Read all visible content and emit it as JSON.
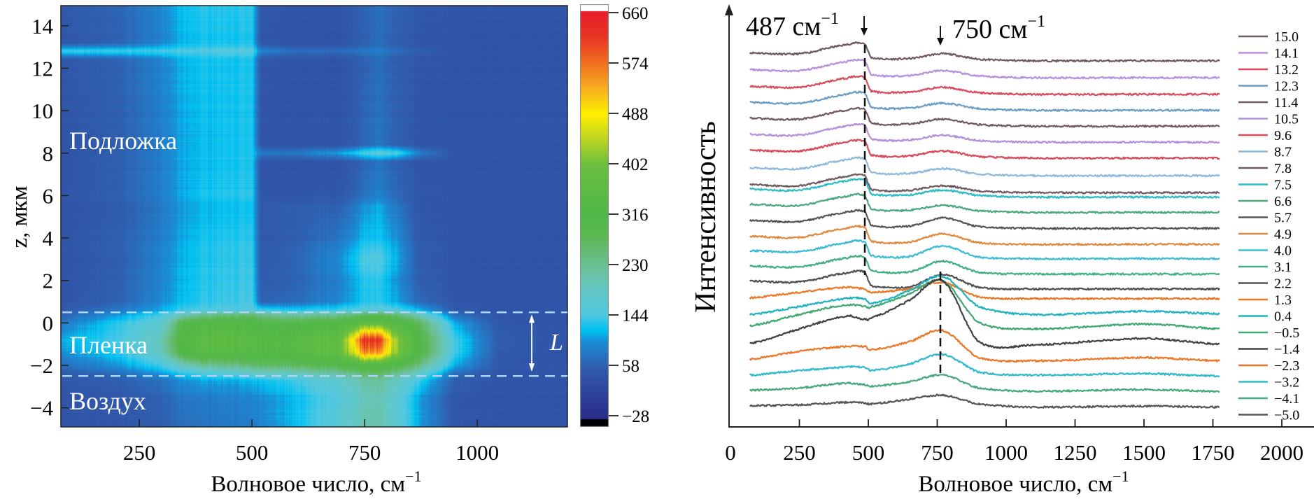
{
  "panel_left": {
    "xlabel": "Волновое число, см",
    "xlabel_sup": "−1",
    "ylabel": "z, мкм",
    "region_labels": {
      "substrate": "Подложка",
      "film": "Пленка",
      "air": "Воздух"
    },
    "thickness_label": "L",
    "colors": {
      "dashed_line": "#a8d4f2",
      "region_text": "#ffffff"
    }
  },
  "panel_right": {
    "xlabel": "Волновое число, см",
    "xlabel_sup": "−1",
    "ylabel": "Интенсивность",
    "annotation_487": {
      "text": "487 см",
      "sup": "−1"
    },
    "annotation_750": {
      "text": "750 см",
      "sup": "−1"
    }
  },
  "chart_data": [
    {
      "type": "heatmap",
      "xlabel": "Волновое число, см−1",
      "ylabel": "z, мкм",
      "xlim": [
        76,
        1200
      ],
      "ylim": [
        -4.9,
        14.95
      ],
      "xticks": [
        "250",
        "500",
        "750",
        "1000"
      ],
      "xtick_values": [
        250,
        500,
        750,
        1000
      ],
      "yticks": [
        "14",
        "12",
        "10",
        "8",
        "6",
        "4",
        "2",
        "0",
        "−2",
        "−4"
      ],
      "ytick_values": [
        14,
        12,
        10,
        8,
        6,
        4,
        2,
        0,
        -2,
        -4
      ],
      "dashed_lines_z": [
        0.5,
        -2.5
      ],
      "thickness_arrow_z": [
        0.4,
        -2.3
      ],
      "colorbar": {
        "range": [
          -28,
          660
        ],
        "ticks": [
          "660",
          "574",
          "488",
          "402",
          "316",
          "230",
          "144",
          "58",
          "−28"
        ],
        "tick_values": [
          660,
          574,
          488,
          402,
          316,
          230,
          144,
          58,
          -28
        ],
        "colormap": [
          [
            -28,
            "#2b2f8c"
          ],
          [
            20,
            "#2f48a0"
          ],
          [
            58,
            "#3060b0"
          ],
          [
            100,
            "#1a8fd8"
          ],
          [
            118,
            "#00c2f2"
          ],
          [
            144,
            "#50c8e2"
          ],
          [
            190,
            "#66c8c4"
          ],
          [
            230,
            "#6cc094"
          ],
          [
            280,
            "#5cb852"
          ],
          [
            316,
            "#50b848"
          ],
          [
            402,
            "#6cc040"
          ],
          [
            450,
            "#c8d820"
          ],
          [
            488,
            "#fff000"
          ],
          [
            530,
            "#f8b020"
          ],
          [
            574,
            "#f07020"
          ],
          [
            620,
            "#e83424"
          ],
          [
            660,
            "#e8202a"
          ]
        ],
        "over_color": "#ffffff",
        "under_color": "#000000"
      },
      "grid": {
        "x": [
          80,
          200,
          300,
          350,
          400,
          450,
          500,
          520,
          600,
          700,
          750,
          780,
          820,
          870,
          950,
          1050,
          1200
        ],
        "z": [
          15,
          13.2,
          12.8,
          12.4,
          9,
          8.4,
          8,
          7.6,
          6,
          5.5,
          4,
          3,
          2,
          1,
          0.6,
          0.4,
          0,
          -0.8,
          -1.4,
          -2,
          -2.4,
          -2.7,
          -3.5,
          -5
        ],
        "values": [
          [
            45,
            60,
            90,
            120,
            130,
            130,
            130,
            45,
            40,
            40,
            60,
            70,
            60,
            45,
            40,
            40,
            40
          ],
          [
            45,
            60,
            90,
            115,
            125,
            125,
            125,
            45,
            40,
            40,
            60,
            70,
            55,
            45,
            40,
            40,
            40
          ],
          [
            140,
            140,
            140,
            145,
            150,
            155,
            150,
            90,
            70,
            70,
            80,
            85,
            70,
            55,
            40,
            40,
            40
          ],
          [
            45,
            60,
            90,
            115,
            125,
            125,
            125,
            45,
            40,
            40,
            60,
            70,
            55,
            45,
            40,
            40,
            40
          ],
          [
            40,
            55,
            85,
            110,
            120,
            125,
            125,
            42,
            40,
            40,
            65,
            75,
            60,
            42,
            40,
            40,
            40
          ],
          [
            40,
            55,
            85,
            110,
            120,
            125,
            125,
            42,
            40,
            40,
            65,
            75,
            60,
            42,
            40,
            40,
            40
          ],
          [
            40,
            55,
            85,
            110,
            120,
            125,
            125,
            80,
            80,
            110,
            150,
            160,
            150,
            90,
            40,
            40,
            40
          ],
          [
            40,
            55,
            85,
            110,
            120,
            125,
            125,
            42,
            40,
            40,
            65,
            75,
            60,
            42,
            40,
            40,
            40
          ],
          [
            40,
            55,
            85,
            110,
            125,
            130,
            130,
            42,
            40,
            45,
            75,
            85,
            65,
            45,
            40,
            40,
            40
          ],
          [
            40,
            50,
            80,
            105,
            115,
            120,
            120,
            50,
            55,
            60,
            100,
            110,
            80,
            45,
            40,
            40,
            40
          ],
          [
            40,
            55,
            85,
            110,
            125,
            130,
            130,
            45,
            55,
            80,
            120,
            120,
            100,
            50,
            40,
            40,
            40
          ],
          [
            40,
            55,
            90,
            115,
            130,
            135,
            135,
            48,
            65,
            100,
            150,
            150,
            115,
            55,
            40,
            40,
            40
          ],
          [
            40,
            55,
            90,
            115,
            130,
            135,
            135,
            50,
            60,
            90,
            130,
            130,
            100,
            55,
            40,
            40,
            40
          ],
          [
            42,
            60,
            95,
            120,
            135,
            140,
            140,
            60,
            70,
            95,
            130,
            130,
            110,
            70,
            42,
            40,
            40
          ],
          [
            50,
            80,
            110,
            140,
            150,
            150,
            150,
            140,
            130,
            140,
            160,
            160,
            150,
            120,
            50,
            40,
            40
          ],
          [
            60,
            100,
            140,
            200,
            230,
            250,
            250,
            230,
            210,
            230,
            270,
            270,
            250,
            200,
            70,
            42,
            40
          ],
          [
            80,
            130,
            170,
            300,
            330,
            330,
            310,
            300,
            300,
            320,
            360,
            360,
            330,
            280,
            110,
            45,
            40
          ],
          [
            110,
            140,
            200,
            330,
            360,
            360,
            340,
            340,
            340,
            380,
            640,
            620,
            420,
            320,
            140,
            50,
            40
          ],
          [
            100,
            130,
            190,
            320,
            350,
            350,
            330,
            330,
            340,
            380,
            560,
            540,
            420,
            320,
            140,
            50,
            40
          ],
          [
            70,
            100,
            140,
            200,
            230,
            240,
            250,
            260,
            270,
            300,
            330,
            320,
            300,
            250,
            110,
            45,
            40
          ],
          [
            50,
            70,
            100,
            130,
            150,
            160,
            170,
            180,
            190,
            220,
            260,
            260,
            230,
            180,
            70,
            42,
            40
          ],
          [
            45,
            55,
            75,
            100,
            110,
            110,
            115,
            120,
            140,
            180,
            220,
            220,
            190,
            140,
            55,
            40,
            40
          ],
          [
            40,
            45,
            60,
            80,
            85,
            90,
            90,
            95,
            120,
            160,
            200,
            200,
            170,
            110,
            45,
            40,
            40
          ],
          [
            40,
            45,
            55,
            70,
            75,
            80,
            80,
            90,
            120,
            170,
            210,
            210,
            170,
            110,
            45,
            40,
            40
          ]
        ]
      }
    },
    {
      "type": "line",
      "xlabel": "Волновое число, см−1",
      "ylabel": "Интенсивность",
      "xlim": [
        0,
        2000
      ],
      "ylim": [
        -3.7,
        128.5
      ],
      "xticks": [
        "0",
        "250",
        "500",
        "750",
        "1000",
        "1250",
        "1500",
        "1750",
        "2000"
      ],
      "xtick_values": [
        0,
        250,
        500,
        750,
        1000,
        1250,
        1500,
        1750,
        2000
      ],
      "legend_placement": "right",
      "annotations": [
        {
          "text": "487 см−1",
          "x": 487,
          "marker": "arrow-down"
        },
        {
          "text": "750 см−1",
          "x": 762,
          "marker": "arrow-down"
        }
      ],
      "dashed_guides": [
        {
          "x": 487,
          "series_from": "15.0",
          "series_to": "2.2"
        },
        {
          "x": 762,
          "series_from": "1.3",
          "series_to": "-4.1"
        }
      ],
      "x": [
        70,
        250,
        420,
        487,
        510,
        650,
        770,
        900,
        1100,
        1500,
        1775
      ],
      "series": [
        {
          "name": "15.0",
          "color": "#6e5a60",
          "values": [
            113.5,
            113.2,
            116.0,
            116.3,
            112.0,
            111.7,
            113.2,
            111.5,
            111.0,
            111.0,
            111.0
          ]
        },
        {
          "name": "14.1",
          "color": "#b48fdc",
          "values": [
            108.2,
            107.9,
            110.7,
            111.0,
            106.7,
            106.4,
            107.9,
            106.2,
            105.7,
            105.7,
            105.7
          ]
        },
        {
          "name": "13.2",
          "color": "#d84a5c",
          "values": [
            103.0,
            102.7,
            105.5,
            105.8,
            101.5,
            101.2,
            102.7,
            101.0,
            100.5,
            100.5,
            100.5
          ]
        },
        {
          "name": "12.3",
          "color": "#6a9cc4",
          "values": [
            98.0,
            97.7,
            100.5,
            100.8,
            96.5,
            96.2,
            97.7,
            96.0,
            95.5,
            95.5,
            95.5
          ]
        },
        {
          "name": "11.4",
          "color": "#6e5a60",
          "values": [
            93.0,
            92.7,
            95.5,
            95.8,
            91.5,
            91.2,
            92.7,
            91.0,
            90.5,
            90.5,
            90.5
          ]
        },
        {
          "name": "10.5",
          "color": "#b48fdc",
          "values": [
            88.0,
            87.7,
            90.5,
            90.8,
            86.5,
            86.2,
            87.7,
            86.0,
            85.5,
            85.5,
            85.5
          ]
        },
        {
          "name": "9.6",
          "color": "#d84a5c",
          "values": [
            83.0,
            82.7,
            85.5,
            85.8,
            81.5,
            81.2,
            82.7,
            81.0,
            80.5,
            80.5,
            80.5
          ]
        },
        {
          "name": "8.7",
          "color": "#8fb8da",
          "values": [
            77.5,
            77.2,
            80.0,
            80.3,
            76.0,
            75.7,
            77.2,
            75.5,
            75.0,
            75.0,
            75.0
          ]
        },
        {
          "name": "7.8",
          "color": "#6e5a60",
          "values": [
            72.2,
            71.9,
            74.7,
            75.0,
            70.7,
            70.4,
            71.9,
            70.2,
            69.7,
            69.7,
            69.7
          ]
        },
        {
          "name": "7.5",
          "color": "#2cbcc4",
          "values": [
            70.8,
            70.5,
            73.3,
            73.6,
            69.3,
            69.0,
            70.5,
            68.8,
            68.3,
            68.3,
            68.3
          ]
        },
        {
          "name": "6.6",
          "color": "#4aa87c",
          "values": [
            66.0,
            65.7,
            68.5,
            68.8,
            64.5,
            64.2,
            65.7,
            64.0,
            63.5,
            63.5,
            63.5
          ]
        },
        {
          "name": "5.7",
          "color": "#555558",
          "values": [
            61.0,
            60.7,
            63.5,
            63.8,
            59.5,
            59.2,
            61.8,
            59.0,
            58.5,
            58.5,
            58.5
          ]
        },
        {
          "name": "4.9",
          "color": "#e08a40",
          "values": [
            56.0,
            55.7,
            58.5,
            58.8,
            54.5,
            54.2,
            56.8,
            54.0,
            53.5,
            53.5,
            53.5
          ]
        },
        {
          "name": "4.0",
          "color": "#3cbcd4",
          "values": [
            51.5,
            51.2,
            54.0,
            54.3,
            50.0,
            49.7,
            53.0,
            49.5,
            49.0,
            49.0,
            49.0
          ]
        },
        {
          "name": "3.1",
          "color": "#40b080",
          "values": [
            46.7,
            46.4,
            49.2,
            49.5,
            45.2,
            44.9,
            48.2,
            44.7,
            44.2,
            44.2,
            44.2
          ]
        },
        {
          "name": "2.2",
          "color": "#505052",
          "values": [
            42.0,
            41.7,
            44.5,
            44.8,
            40.5,
            40.2,
            44.0,
            40.0,
            39.5,
            39.5,
            39.5
          ]
        },
        {
          "name": "1.3",
          "color": "#ea7a28",
          "values": [
            36.7,
            38.5,
            40.0,
            39.5,
            38.5,
            39.5,
            41.5,
            37.0,
            36.5,
            36.5,
            36.5
          ]
        },
        {
          "name": "0.4",
          "color": "#20b2c2",
          "values": [
            31.5,
            34.0,
            36.5,
            36.5,
            35.0,
            39.0,
            43.5,
            34.0,
            31.5,
            32.5,
            31.7
          ]
        },
        {
          "name": "−0.5",
          "color": "#40a872",
          "values": [
            28.0,
            31.5,
            34.5,
            34.0,
            34.0,
            38.0,
            42.0,
            29.0,
            27.0,
            28.5,
            27.0
          ]
        },
        {
          "name": "−1.4",
          "color": "#424244",
          "values": [
            22.5,
            27.0,
            31.0,
            30.0,
            30.5,
            36.0,
            42.0,
            23.0,
            22.0,
            24.0,
            22.2
          ]
        },
        {
          "name": "−2.3",
          "color": "#ea7828",
          "values": [
            17.5,
            20.0,
            21.5,
            21.5,
            20.5,
            23.0,
            26.5,
            18.0,
            17.0,
            18.0,
            17.0
          ]
        },
        {
          "name": "−3.2",
          "color": "#30bacb",
          "values": [
            12.5,
            14.0,
            15.0,
            15.0,
            14.0,
            16.0,
            19.0,
            13.5,
            12.5,
            13.0,
            12.2
          ]
        },
        {
          "name": "−4.1",
          "color": "#48a87a",
          "values": [
            7.8,
            8.5,
            10.0,
            9.5,
            9.0,
            10.5,
            12.5,
            8.5,
            7.5,
            8.0,
            7.4
          ]
        },
        {
          "name": "−5.0",
          "color": "#555558",
          "values": [
            3.0,
            3.2,
            4.0,
            3.8,
            3.5,
            5.0,
            6.2,
            3.5,
            2.5,
            2.8,
            2.5
          ]
        }
      ]
    }
  ]
}
